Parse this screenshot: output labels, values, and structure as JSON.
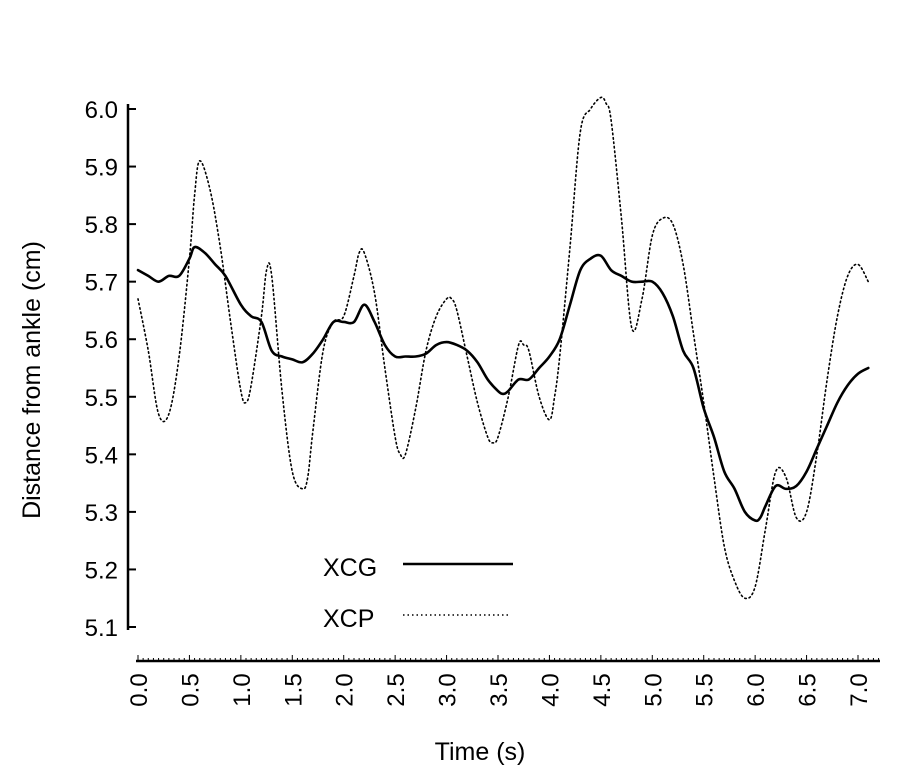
{
  "chart_data": {
    "type": "line",
    "title": "",
    "xlabel": "Time (s)",
    "ylabel": "Distance from ankle (cm)",
    "xlim": [
      0.0,
      7.2
    ],
    "ylim": [
      5.1,
      6.0
    ],
    "x_ticks": [
      "0.0",
      "0.5",
      "1.0",
      "1.5",
      "2.0",
      "2.5",
      "3.0",
      "3.5",
      "4.0",
      "4.5",
      "5.0",
      "5.5",
      "6.0",
      "6.5",
      "7.0"
    ],
    "y_ticks": [
      "6.0",
      "5.9",
      "5.8",
      "5.7",
      "5.6",
      "5.5",
      "5.4",
      "5.3",
      "5.2",
      "5.1"
    ],
    "grid": false,
    "legend": {
      "position": "bottom-center"
    },
    "series": [
      {
        "name": "XCG",
        "style": "solid",
        "color": "#000000",
        "x": [
          0.0,
          0.1,
          0.2,
          0.3,
          0.4,
          0.5,
          0.55,
          0.65,
          0.75,
          0.85,
          1.0,
          1.1,
          1.2,
          1.3,
          1.4,
          1.5,
          1.6,
          1.7,
          1.8,
          1.9,
          2.0,
          2.1,
          2.2,
          2.3,
          2.4,
          2.5,
          2.6,
          2.7,
          2.8,
          2.9,
          3.0,
          3.1,
          3.2,
          3.3,
          3.4,
          3.5,
          3.55,
          3.6,
          3.7,
          3.8,
          3.9,
          4.0,
          4.1,
          4.2,
          4.3,
          4.4,
          4.5,
          4.6,
          4.7,
          4.8,
          4.9,
          5.0,
          5.1,
          5.2,
          5.3,
          5.4,
          5.5,
          5.6,
          5.7,
          5.8,
          5.9,
          6.0,
          6.05,
          6.1,
          6.2,
          6.3,
          6.4,
          6.5,
          6.6,
          6.7,
          6.8,
          6.9,
          7.0,
          7.1
        ],
        "y": [
          5.72,
          5.71,
          5.7,
          5.71,
          5.71,
          5.74,
          5.76,
          5.75,
          5.73,
          5.71,
          5.66,
          5.64,
          5.63,
          5.58,
          5.57,
          5.565,
          5.56,
          5.575,
          5.6,
          5.63,
          5.63,
          5.63,
          5.66,
          5.63,
          5.59,
          5.57,
          5.57,
          5.57,
          5.575,
          5.59,
          5.595,
          5.59,
          5.58,
          5.56,
          5.53,
          5.51,
          5.505,
          5.51,
          5.53,
          5.53,
          5.55,
          5.57,
          5.6,
          5.66,
          5.72,
          5.74,
          5.745,
          5.72,
          5.71,
          5.7,
          5.7,
          5.7,
          5.68,
          5.64,
          5.58,
          5.55,
          5.48,
          5.43,
          5.37,
          5.34,
          5.3,
          5.285,
          5.29,
          5.31,
          5.345,
          5.34,
          5.345,
          5.37,
          5.41,
          5.45,
          5.49,
          5.52,
          5.54,
          5.55
        ]
      },
      {
        "name": "XCP",
        "style": "dotted",
        "color": "#000000",
        "x": [
          0.0,
          0.1,
          0.2,
          0.3,
          0.4,
          0.5,
          0.55,
          0.6,
          0.7,
          0.8,
          0.9,
          1.0,
          1.05,
          1.1,
          1.2,
          1.25,
          1.3,
          1.4,
          1.5,
          1.6,
          1.65,
          1.7,
          1.8,
          1.9,
          2.0,
          2.1,
          2.15,
          2.2,
          2.3,
          2.4,
          2.5,
          2.55,
          2.6,
          2.7,
          2.8,
          2.9,
          3.0,
          3.05,
          3.1,
          3.2,
          3.3,
          3.4,
          3.45,
          3.5,
          3.6,
          3.7,
          3.75,
          3.8,
          3.9,
          4.0,
          4.05,
          4.1,
          4.2,
          4.3,
          4.4,
          4.5,
          4.55,
          4.6,
          4.7,
          4.8,
          4.9,
          5.0,
          5.1,
          5.2,
          5.3,
          5.4,
          5.5,
          5.6,
          5.7,
          5.8,
          5.9,
          6.0,
          6.1,
          6.2,
          6.3,
          6.4,
          6.5,
          6.6,
          6.7,
          6.8,
          6.9,
          7.0,
          7.1
        ],
        "y": [
          5.67,
          5.58,
          5.47,
          5.47,
          5.57,
          5.74,
          5.85,
          5.91,
          5.86,
          5.76,
          5.63,
          5.51,
          5.49,
          5.52,
          5.64,
          5.72,
          5.71,
          5.51,
          5.37,
          5.34,
          5.36,
          5.44,
          5.58,
          5.63,
          5.64,
          5.71,
          5.75,
          5.75,
          5.68,
          5.55,
          5.43,
          5.4,
          5.4,
          5.48,
          5.58,
          5.64,
          5.67,
          5.67,
          5.65,
          5.57,
          5.49,
          5.43,
          5.42,
          5.43,
          5.5,
          5.59,
          5.59,
          5.58,
          5.5,
          5.46,
          5.5,
          5.57,
          5.76,
          5.96,
          6.0,
          6.02,
          6.01,
          5.98,
          5.81,
          5.62,
          5.67,
          5.78,
          5.81,
          5.8,
          5.73,
          5.61,
          5.49,
          5.36,
          5.24,
          5.18,
          5.15,
          5.17,
          5.27,
          5.37,
          5.36,
          5.29,
          5.3,
          5.4,
          5.53,
          5.64,
          5.71,
          5.73,
          5.7
        ]
      }
    ]
  }
}
